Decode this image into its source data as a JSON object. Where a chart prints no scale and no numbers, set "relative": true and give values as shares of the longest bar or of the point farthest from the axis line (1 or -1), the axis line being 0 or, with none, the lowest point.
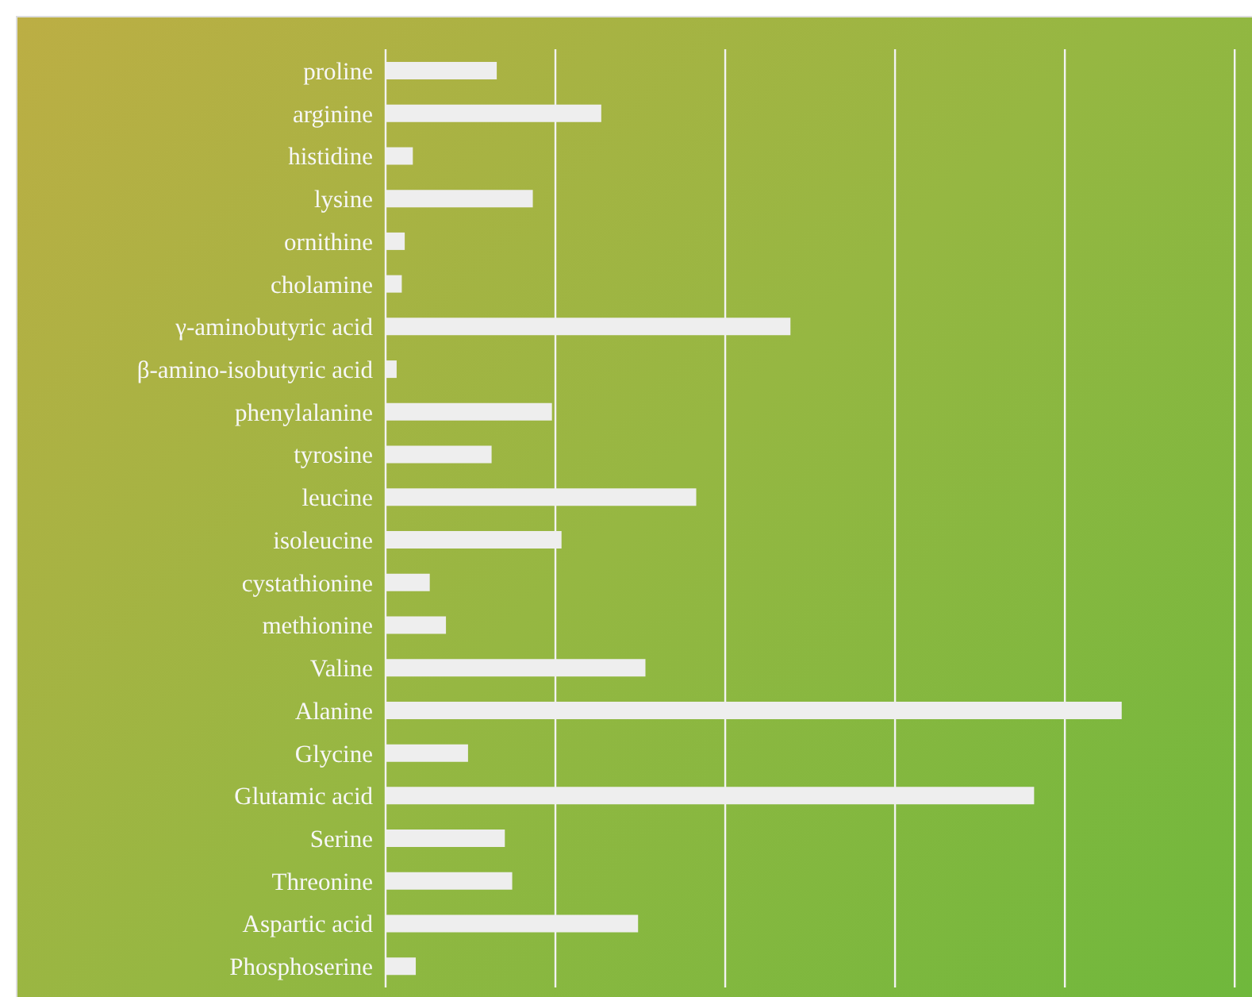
{
  "chart_data": {
    "type": "bar",
    "orientation": "horizontal",
    "relative": true,
    "grid": "x",
    "categories": [
      "proline",
      "arginine",
      "histidine",
      "lysine",
      "ornithine",
      "cholamine",
      "γ-aminobutyric acid",
      "β-amino-isobutyric acid",
      "phenylalanine",
      "tyrosine",
      "leucine",
      "isoleucine",
      "cystathionine",
      "methionine",
      "Valine",
      "Alanine",
      "Glycine",
      "Glutamic acid",
      "Serine",
      "Threonine",
      "Aspartic acid",
      "Phosphoserine"
    ],
    "values": [
      0.151,
      0.293,
      0.037,
      0.2,
      0.026,
      0.022,
      0.55,
      0.015,
      0.226,
      0.144,
      0.422,
      0.239,
      0.06,
      0.082,
      0.353,
      1,
      0.112,
      0.881,
      0.162,
      0.172,
      0.343,
      0.041
    ],
    "color": "#eeeeee"
  }
}
